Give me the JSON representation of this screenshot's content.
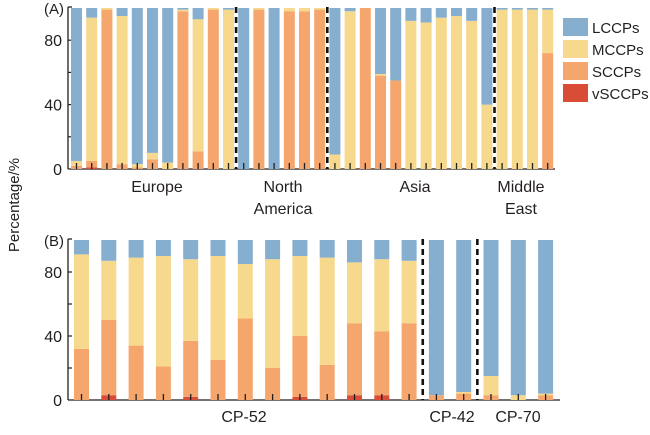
{
  "chart_data": [
    {
      "panel": "(A)",
      "type": "bar",
      "stacked": true,
      "ylabel": "Percentage/%",
      "ylim": [
        0,
        100
      ],
      "yticks": [
        0,
        40,
        80
      ],
      "grid": false,
      "legend_position": "right",
      "series_names": [
        "LCCPs",
        "MCCPs",
        "SCCPs",
        "vSCCPs"
      ],
      "groups": [
        {
          "label": "Europe",
          "bars": [
            {
              "LCCPs": 95,
              "MCCPs": 3,
              "SCCPs": 2,
              "vSCCPs": 0
            },
            {
              "LCCPs": 6,
              "MCCPs": 89,
              "SCCPs": 4,
              "vSCCPs": 1
            },
            {
              "LCCPs": 0,
              "MCCPs": 1,
              "SCCPs": 99,
              "vSCCPs": 0
            },
            {
              "LCCPs": 5,
              "MCCPs": 92,
              "SCCPs": 3,
              "vSCCPs": 0
            },
            {
              "LCCPs": 97,
              "MCCPs": 2,
              "SCCPs": 1,
              "vSCCPs": 0
            },
            {
              "LCCPs": 90,
              "MCCPs": 4,
              "SCCPs": 6,
              "vSCCPs": 0
            },
            {
              "LCCPs": 96,
              "MCCPs": 4,
              "SCCPs": 0,
              "vSCCPs": 0
            },
            {
              "LCCPs": 1,
              "MCCPs": 1,
              "SCCPs": 98,
              "vSCCPs": 0
            },
            {
              "LCCPs": 7,
              "MCCPs": 82,
              "SCCPs": 11,
              "vSCCPs": 0
            },
            {
              "LCCPs": 0,
              "MCCPs": 1,
              "SCCPs": 99,
              "vSCCPs": 0
            },
            {
              "LCCPs": 1,
              "MCCPs": 99,
              "SCCPs": 0,
              "vSCCPs": 0
            }
          ]
        },
        {
          "label": "North America",
          "bars": [
            {
              "LCCPs": 100,
              "MCCPs": 0,
              "SCCPs": 0,
              "vSCCPs": 0
            },
            {
              "LCCPs": 0,
              "MCCPs": 1,
              "SCCPs": 99,
              "vSCCPs": 0
            },
            {
              "LCCPs": 100,
              "MCCPs": 0,
              "SCCPs": 0,
              "vSCCPs": 0
            },
            {
              "LCCPs": 0,
              "MCCPs": 2,
              "SCCPs": 98,
              "vSCCPs": 0
            },
            {
              "LCCPs": 0,
              "MCCPs": 2,
              "SCCPs": 98,
              "vSCCPs": 0
            },
            {
              "LCCPs": 0,
              "MCCPs": 1,
              "SCCPs": 99,
              "vSCCPs": 0
            }
          ]
        },
        {
          "label": "Asia",
          "bars": [
            {
              "LCCPs": 91,
              "MCCPs": 9,
              "SCCPs": 0,
              "vSCCPs": 0
            },
            {
              "LCCPs": 2,
              "MCCPs": 98,
              "SCCPs": 0,
              "vSCCPs": 0
            },
            {
              "LCCPs": 0,
              "MCCPs": 0,
              "SCCPs": 100,
              "vSCCPs": 0
            },
            {
              "LCCPs": 41,
              "MCCPs": 1,
              "SCCPs": 58,
              "vSCCPs": 0
            },
            {
              "LCCPs": 45,
              "MCCPs": 0,
              "SCCPs": 55,
              "vSCCPs": 0
            },
            {
              "LCCPs": 8,
              "MCCPs": 92,
              "SCCPs": 0,
              "vSCCPs": 0
            },
            {
              "LCCPs": 9,
              "MCCPs": 91,
              "SCCPs": 0,
              "vSCCPs": 0
            },
            {
              "LCCPs": 6,
              "MCCPs": 94,
              "SCCPs": 0,
              "vSCCPs": 0
            },
            {
              "LCCPs": 5,
              "MCCPs": 95,
              "SCCPs": 0,
              "vSCCPs": 0
            },
            {
              "LCCPs": 8,
              "MCCPs": 92,
              "SCCPs": 0,
              "vSCCPs": 0
            },
            {
              "LCCPs": 60,
              "MCCPs": 40,
              "SCCPs": 0,
              "vSCCPs": 0
            }
          ]
        },
        {
          "label": "Middle East",
          "bars": [
            {
              "LCCPs": 1,
              "MCCPs": 99,
              "SCCPs": 0,
              "vSCCPs": 0
            },
            {
              "LCCPs": 1,
              "MCCPs": 99,
              "SCCPs": 0,
              "vSCCPs": 0
            },
            {
              "LCCPs": 1,
              "MCCPs": 99,
              "SCCPs": 0,
              "vSCCPs": 0
            },
            {
              "LCCPs": 1,
              "MCCPs": 27,
              "SCCPs": 72,
              "vSCCPs": 0
            }
          ]
        }
      ]
    },
    {
      "panel": "(B)",
      "type": "bar",
      "stacked": true,
      "ylabel": "Percentage/%",
      "ylim": [
        0,
        100
      ],
      "yticks": [
        0,
        40,
        80
      ],
      "grid": false,
      "series_names": [
        "LCCPs",
        "MCCPs",
        "SCCPs",
        "vSCCPs"
      ],
      "groups": [
        {
          "label": "CP-52",
          "bars": [
            {
              "LCCPs": 9,
              "MCCPs": 59,
              "SCCPs": 32,
              "vSCCPs": 0
            },
            {
              "LCCPs": 13,
              "MCCPs": 37,
              "SCCPs": 47,
              "vSCCPs": 3
            },
            {
              "LCCPs": 11,
              "MCCPs": 55,
              "SCCPs": 34,
              "vSCCPs": 0
            },
            {
              "LCCPs": 10,
              "MCCPs": 69,
              "SCCPs": 21,
              "vSCCPs": 0
            },
            {
              "LCCPs": 12,
              "MCCPs": 51,
              "SCCPs": 35,
              "vSCCPs": 2
            },
            {
              "LCCPs": 10,
              "MCCPs": 65,
              "SCCPs": 25,
              "vSCCPs": 0
            },
            {
              "LCCPs": 15,
              "MCCPs": 34,
              "SCCPs": 51,
              "vSCCPs": 0
            },
            {
              "LCCPs": 12,
              "MCCPs": 68,
              "SCCPs": 20,
              "vSCCPs": 0
            },
            {
              "LCCPs": 10,
              "MCCPs": 50,
              "SCCPs": 38,
              "vSCCPs": 2
            },
            {
              "LCCPs": 11,
              "MCCPs": 67,
              "SCCPs": 22,
              "vSCCPs": 0
            },
            {
              "LCCPs": 14,
              "MCCPs": 38,
              "SCCPs": 45,
              "vSCCPs": 3
            },
            {
              "LCCPs": 12,
              "MCCPs": 45,
              "SCCPs": 40,
              "vSCCPs": 3
            },
            {
              "LCCPs": 13,
              "MCCPs": 39,
              "SCCPs": 48,
              "vSCCPs": 0
            }
          ]
        },
        {
          "label": "CP-42",
          "bars": [
            {
              "LCCPs": 97,
              "MCCPs": 0,
              "SCCPs": 3,
              "vSCCPs": 0
            },
            {
              "LCCPs": 95,
              "MCCPs": 1,
              "SCCPs": 4,
              "vSCCPs": 0
            }
          ]
        },
        {
          "label": "CP-70",
          "bars": [
            {
              "LCCPs": 85,
              "MCCPs": 12,
              "SCCPs": 3,
              "vSCCPs": 0
            },
            {
              "LCCPs": 97,
              "MCCPs": 3,
              "SCCPs": 0,
              "vSCCPs": 0
            },
            {
              "LCCPs": 96,
              "MCCPs": 1,
              "SCCPs": 3,
              "vSCCPs": 0
            }
          ]
        }
      ]
    }
  ],
  "legend": [
    {
      "label": "LCCPs",
      "color": "#86aecf"
    },
    {
      "label": "MCCPs",
      "color": "#f6d98d"
    },
    {
      "label": "SCCPs",
      "color": "#f4a66c"
    },
    {
      "label": "vSCCPs",
      "color": "#d94c35"
    }
  ],
  "colors": {
    "LCCPs": "#86aecf",
    "MCCPs": "#f6d98d",
    "SCCPs": "#f4a66c",
    "vSCCPs": "#d94c35",
    "axis": "#231f20"
  },
  "labels": {
    "panel_a": "(A)",
    "panel_b": "(B)",
    "ylabel": "Percentage/%",
    "region_a": [
      "Europe",
      "North America",
      "Asia",
      "Middle East"
    ],
    "region_b": [
      "CP-52",
      "CP-42",
      "CP-70"
    ]
  }
}
